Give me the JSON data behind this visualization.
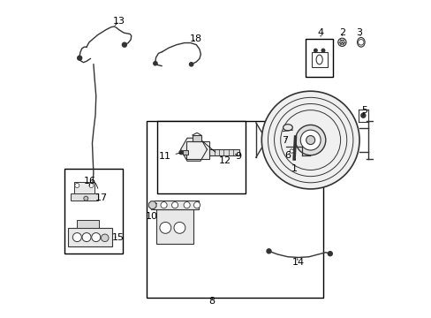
{
  "background_color": "#ffffff",
  "line_color": "#333333",
  "text_color": "#000000",
  "fig_width": 4.89,
  "fig_height": 3.6,
  "dpi": 100,
  "label_fontsize": 8,
  "lw": 1.0
}
